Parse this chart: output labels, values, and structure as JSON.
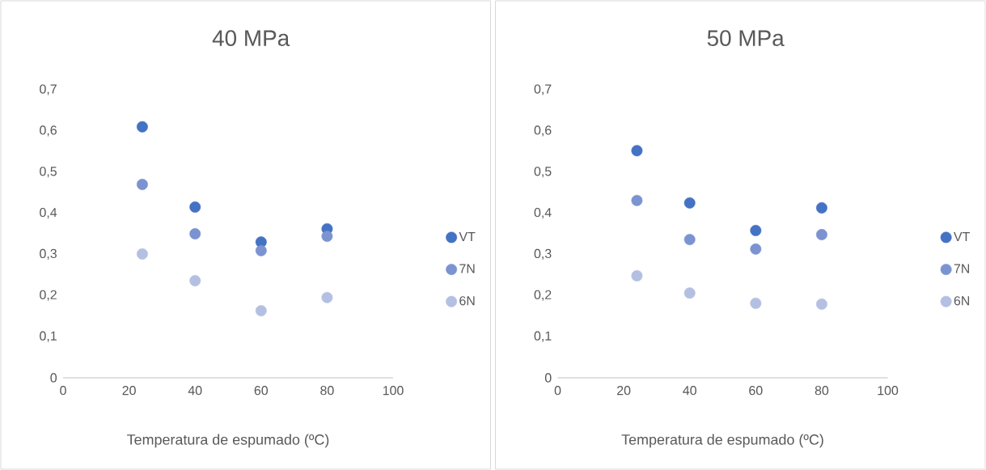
{
  "chart_data": [
    {
      "type": "scatter",
      "title": "40 MPa",
      "xlabel": "Temperatura de espumado (ºC)",
      "x": [
        24,
        40,
        60,
        80
      ],
      "series": [
        {
          "name": "VT",
          "color": "#4472c4",
          "values": [
            0.61,
            0.415,
            0.33,
            0.362
          ]
        },
        {
          "name": "7N",
          "color": "#7b93d0",
          "values": [
            0.47,
            0.35,
            0.309,
            0.344
          ]
        },
        {
          "name": "6N",
          "color": "#b4c0e2",
          "values": [
            0.301,
            0.236,
            0.163,
            0.195
          ]
        }
      ],
      "xlim": [
        0,
        100
      ],
      "xticks": [
        0,
        20,
        40,
        60,
        80,
        100
      ],
      "ylim": [
        0,
        0.7
      ],
      "yticks": [
        0,
        {
          "value": 0.1,
          "label": "0,1"
        },
        {
          "value": 0.2,
          "label": "0,2"
        },
        {
          "value": 0.3,
          "label": "0,3"
        },
        {
          "value": 0.4,
          "label": "0,4"
        },
        {
          "value": 0.5,
          "label": "0,5"
        },
        {
          "value": 0.6,
          "label": "0,6"
        },
        {
          "value": 0.7,
          "label": "0,7"
        }
      ],
      "legend": "right"
    },
    {
      "type": "scatter",
      "title": "50 MPa",
      "xlabel": "Temperatura de espumado (ºC)",
      "x": [
        24,
        40,
        60,
        80
      ],
      "series": [
        {
          "name": "VT",
          "color": "#4472c4",
          "values": [
            0.552,
            0.425,
            0.358,
            0.413
          ]
        },
        {
          "name": "7N",
          "color": "#7b93d0",
          "values": [
            0.431,
            0.336,
            0.313,
            0.348
          ]
        },
        {
          "name": "6N",
          "color": "#b4c0e2",
          "values": [
            0.248,
            0.206,
            0.181,
            0.179
          ]
        }
      ],
      "xlim": [
        0,
        100
      ],
      "xticks": [
        0,
        20,
        40,
        60,
        80,
        100
      ],
      "ylim": [
        0,
        0.7
      ],
      "yticks": [
        0,
        {
          "value": 0.1,
          "label": "0,1"
        },
        {
          "value": 0.2,
          "label": "0,2"
        },
        {
          "value": 0.3,
          "label": "0,3"
        },
        {
          "value": 0.4,
          "label": "0,4"
        },
        {
          "value": 0.5,
          "label": "0,5"
        },
        {
          "value": 0.6,
          "label": "0,6"
        },
        {
          "value": 0.7,
          "label": "0,7"
        }
      ],
      "legend": "right"
    }
  ]
}
